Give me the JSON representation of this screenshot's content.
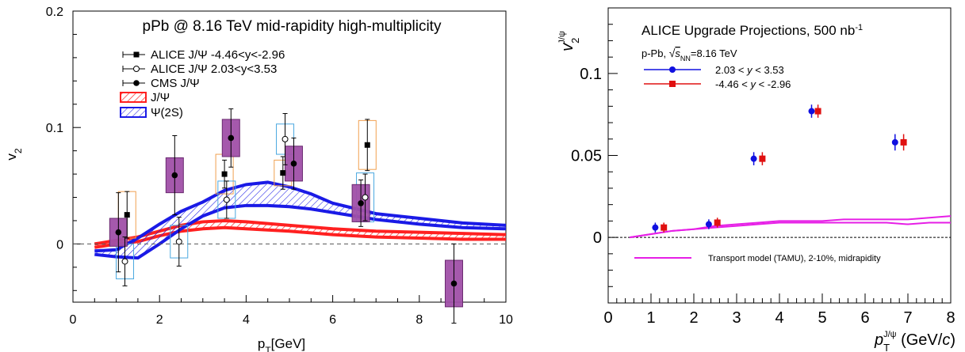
{
  "chart_data": [
    {
      "type": "scatter",
      "title": "pPb @ 8.16 TeV mid-rapidity high-multiplicity",
      "xlabel": "p_T[GeV]",
      "ylabel": "v_2",
      "xlim": [
        0,
        10
      ],
      "ylim": [
        -0.05,
        0.2
      ],
      "xticks": [
        "0",
        "2",
        "4",
        "6",
        "8",
        "10"
      ],
      "yticks": [
        "0",
        "0.1",
        "0.2"
      ],
      "legend_placement": "top-left",
      "series": [
        {
          "name": "ALICE J/Ψ -4.46<y<-2.96",
          "marker": "filled-square",
          "x": [
            1.25,
            3.5,
            4.85,
            6.8
          ],
          "y": [
            0.025,
            0.06,
            0.061,
            0.085
          ],
          "err": [
            0.02,
            0.012,
            0.014,
            0.022
          ],
          "sys": [
            0.02,
            0.017,
            0.011,
            0.021
          ]
        },
        {
          "name": "ALICE J/Ψ 2.03<y<3.53",
          "marker": "open-circle",
          "x": [
            1.2,
            2.45,
            3.55,
            4.9,
            6.75
          ],
          "y": [
            -0.015,
            0.002,
            0.038,
            0.09,
            0.04
          ],
          "err": [
            0.021,
            0.021,
            0.016,
            0.022,
            0.02
          ],
          "sys": [
            0.015,
            0.014,
            0.016,
            0.013,
            0.021
          ]
        },
        {
          "name": "CMS J/Ψ",
          "marker": "filled-circle",
          "x": [
            1.05,
            2.35,
            3.65,
            5.1,
            6.65,
            8.8
          ],
          "y": [
            0.01,
            0.059,
            0.091,
            0.069,
            0.035,
            -0.034
          ],
          "err": [
            0.034,
            0.034,
            0.025,
            0.022,
            0.02,
            0.034
          ],
          "sys": [
            0.012,
            0.015,
            0.016,
            0.015,
            0.016,
            0.02
          ]
        }
      ],
      "bands": [
        {
          "name": "J/Ψ",
          "color": "#ff2020",
          "x": [
            0.5,
            1.0,
            1.5,
            2.0,
            2.5,
            3.0,
            3.5,
            4.0,
            5.0,
            6.0,
            7.0,
            8.0,
            9.0,
            10.0
          ],
          "upper": [
            0.0,
            0.003,
            0.006,
            0.011,
            0.016,
            0.019,
            0.02,
            0.019,
            0.016,
            0.013,
            0.011,
            0.01,
            0.009,
            0.008
          ],
          "lower": [
            -0.003,
            0.0,
            0.002,
            0.007,
            0.011,
            0.013,
            0.014,
            0.013,
            0.011,
            0.008,
            0.006,
            0.005,
            0.004,
            0.004
          ]
        },
        {
          "name": "Ψ(2S)",
          "color": "#1a1ae6",
          "x": [
            0.5,
            1.0,
            1.5,
            2.0,
            2.5,
            3.0,
            3.5,
            4.0,
            4.5,
            5.0,
            5.5,
            6.0,
            7.0,
            8.0,
            9.0,
            10.0
          ],
          "upper": [
            -0.006,
            -0.005,
            0.005,
            0.017,
            0.028,
            0.036,
            0.046,
            0.051,
            0.053,
            0.049,
            0.043,
            0.035,
            0.026,
            0.022,
            0.018,
            0.016
          ],
          "lower": [
            -0.009,
            -0.011,
            -0.012,
            0.0,
            0.013,
            0.024,
            0.031,
            0.033,
            0.033,
            0.032,
            0.03,
            0.027,
            0.021,
            0.017,
            0.014,
            0.013
          ]
        }
      ]
    },
    {
      "type": "scatter",
      "title": "ALICE Upgrade Projections, 500 nb⁻¹",
      "subtitle": "p-Pb, √s_NN=8.16 TeV",
      "xlabel": "p_T^{J/ψ} (GeV/c)",
      "ylabel": "v_2^{J/ψ}",
      "xlim": [
        0,
        8
      ],
      "ylim": [
        -0.04,
        0.14
      ],
      "xticks": [
        "0",
        "1",
        "2",
        "3",
        "4",
        "5",
        "6",
        "7",
        "8"
      ],
      "yticks": [
        "0",
        "0.05",
        "0.1"
      ],
      "legend_placement": "top-left",
      "series": [
        {
          "name": "2.03 < y < 3.53",
          "color": "#1010e0",
          "marker": "circle",
          "x": [
            1.1,
            2.35,
            3.4,
            4.75,
            6.7
          ],
          "y": [
            0.006,
            0.008,
            0.048,
            0.077,
            0.058
          ],
          "err": [
            0.003,
            0.003,
            0.004,
            0.004,
            0.005
          ]
        },
        {
          "name": "-4.46 < y < -2.96",
          "color": "#e01010",
          "marker": "square",
          "x": [
            1.3,
            2.55,
            3.6,
            4.9,
            6.9
          ],
          "y": [
            0.006,
            0.009,
            0.048,
            0.077,
            0.058
          ],
          "err": [
            0.003,
            0.003,
            0.004,
            0.004,
            0.005
          ]
        }
      ],
      "model": {
        "name": "Transport model (TAMU), 2-10%, midrapidity",
        "color": "#e61ee6",
        "x": [
          0.5,
          1.0,
          1.5,
          2.0,
          2.5,
          3.0,
          3.5,
          4.0,
          4.5,
          5.0,
          5.5,
          6.0,
          6.5,
          7.0,
          7.5,
          8.0
        ],
        "upper": [
          0.0,
          0.002,
          0.004,
          0.005,
          0.007,
          0.008,
          0.009,
          0.01,
          0.01,
          0.01,
          0.011,
          0.011,
          0.011,
          0.011,
          0.012,
          0.013
        ],
        "lower": [
          0.0,
          0.002,
          0.004,
          0.005,
          0.006,
          0.007,
          0.008,
          0.009,
          0.009,
          0.009,
          0.009,
          0.009,
          0.009,
          0.008,
          0.009,
          0.009
        ]
      }
    }
  ]
}
